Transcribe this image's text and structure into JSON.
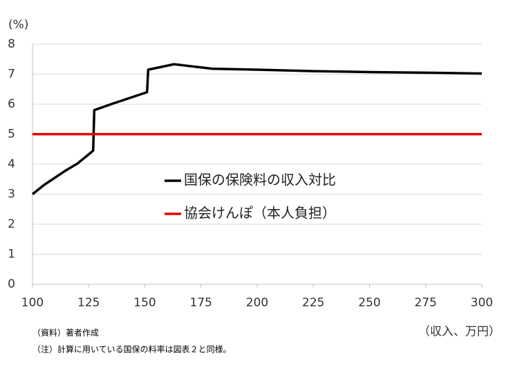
{
  "chart_data": {
    "type": "line",
    "y_label": "(%)",
    "x_label": "（収入、万円）",
    "xlim": [
      100,
      300
    ],
    "xticks": [
      100,
      125,
      150,
      175,
      200,
      225,
      250,
      275,
      300
    ],
    "ylim": [
      0,
      8
    ],
    "yticks": [
      0,
      1,
      2,
      3,
      4,
      5,
      6,
      7,
      8
    ],
    "grid": true,
    "series": [
      {
        "name": "国保の保険料の収入対比",
        "color": "#000000",
        "x": [
          100,
          105,
          110,
          115,
          120,
          127,
          127.5,
          135,
          145,
          151,
          151.5,
          163,
          180,
          200,
          225,
          250,
          275,
          300
        ],
        "values": [
          3.0,
          3.3,
          3.55,
          3.8,
          4.02,
          4.45,
          5.8,
          6.0,
          6.25,
          6.4,
          7.15,
          7.33,
          7.18,
          7.15,
          7.1,
          7.07,
          7.05,
          7.02
        ]
      },
      {
        "name": "協会けんぽ（本人負担）",
        "color": "#e00000",
        "x": [
          100,
          300
        ],
        "values": [
          5,
          5
        ]
      }
    ],
    "notes": [
      "（資料）著者作成",
      "（注）計算に用いている国保の料率は図表２と同様。"
    ]
  }
}
